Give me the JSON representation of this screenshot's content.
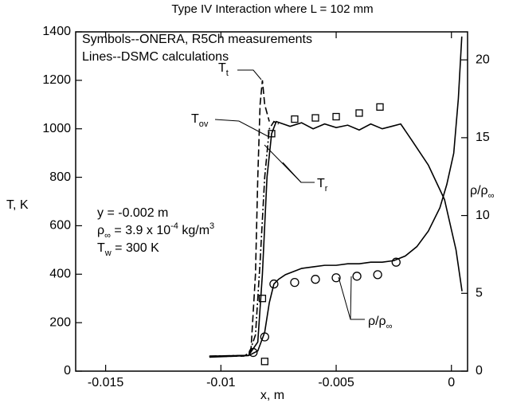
{
  "chart_data": {
    "type": "line",
    "title": "Type IV Interaction where L = 102 mm",
    "xlabel": "x, m",
    "ylabel": "T, K",
    "y2label": [
      {
        "text": "ρ/ρ"
      },
      {
        "text": "∞",
        "shift": "sub"
      }
    ],
    "xlim": [
      -0.0163,
      0.0007
    ],
    "ylim": [
      0,
      1400
    ],
    "y2lim": [
      0,
      21.8
    ],
    "xticks": [
      -0.015,
      -0.01,
      -0.005,
      0
    ],
    "yticks": [
      0,
      200,
      400,
      600,
      800,
      1000,
      1200,
      1400
    ],
    "y2ticks": [
      0,
      5,
      10,
      15,
      20
    ],
    "grid": false,
    "series": [
      {
        "style": "dashed",
        "color": "#000000",
        "x": [
          -0.0105,
          -0.009,
          -0.0087,
          -0.0085,
          -0.0084,
          -0.0083,
          -0.0082,
          -0.0081,
          -0.0079
        ],
        "values": [
          60,
          62,
          80,
          400,
          800,
          1100,
          1200,
          1100,
          1030
        ]
      },
      {
        "style": "dashdot",
        "color": "#000000",
        "x": [
          -0.0105,
          -0.0088,
          -0.0085,
          -0.0083,
          -0.0081,
          -0.0079,
          -0.0077,
          -0.0075
        ],
        "values": [
          62,
          65,
          150,
          450,
          800,
          1000,
          1030,
          1020
        ]
      },
      {
        "style": "solid",
        "color": "#000000",
        "x": [
          -0.0105,
          -0.0088,
          -0.0084,
          -0.0082,
          -0.008,
          -0.0078,
          -0.0076,
          -0.0073,
          -0.007,
          -0.0065,
          -0.006,
          -0.0055,
          -0.005,
          -0.0045,
          -0.004,
          -0.0035,
          -0.003,
          -0.0026,
          -0.0022,
          -0.0017,
          -0.001,
          -0.0003,
          0.0002,
          0.00046
        ],
        "values": [
          62,
          65,
          120,
          400,
          800,
          980,
          1030,
          1020,
          1010,
          1025,
          1000,
          1020,
          1005,
          1015,
          995,
          1020,
          1000,
          1010,
          1020,
          950,
          850,
          708,
          500,
          330
        ]
      },
      {
        "style": "solid",
        "color": "#000000",
        "axis": "y2",
        "x": [
          -0.0105,
          -0.0088,
          -0.0084,
          -0.0081,
          -0.0079,
          -0.0077,
          -0.0075,
          -0.0072,
          -0.0065,
          -0.006,
          -0.0055,
          -0.005,
          -0.0045,
          -0.004,
          -0.0035,
          -0.003,
          -0.0025,
          -0.002,
          -0.0015,
          -0.001,
          -0.0005,
          -0.0002,
          0.0001,
          0.0003,
          0.00045
        ],
        "values": [
          0.9,
          1.0,
          1.3,
          2.5,
          4.4,
          5.6,
          5.9,
          6.2,
          6.6,
          6.7,
          6.8,
          6.8,
          6.9,
          6.9,
          7.0,
          7.0,
          7.1,
          7.4,
          8.0,
          9.0,
          10.5,
          12,
          14,
          17.5,
          21.5
        ]
      },
      {
        "style": "markers",
        "marker": "square",
        "color": "#000000",
        "x": [
          -0.0082,
          -0.0081,
          -0.0078,
          -0.0068,
          -0.0059,
          -0.005,
          -0.004,
          -0.0031
        ],
        "values": [
          300,
          40,
          980,
          1040,
          1045,
          1050,
          1065,
          1090
        ]
      },
      {
        "style": "markers",
        "marker": "circle",
        "color": "#000000",
        "axis": "y2",
        "x": [
          -0.0086,
          -0.0081,
          -0.0077,
          -0.0068,
          -0.0059,
          -0.005,
          -0.0041,
          -0.0032,
          -0.0024
        ],
        "values": [
          1.2,
          2.2,
          5.6,
          5.7,
          5.9,
          6.0,
          6.1,
          6.2,
          7.0
        ]
      }
    ],
    "annotations": [
      {
        "segments": [
          {
            "text": "Symbols--ONERA, R5Ch measurements"
          }
        ]
      },
      {
        "segments": [
          {
            "text": "Lines--DSMC calculations"
          }
        ]
      },
      {
        "segments": [
          {
            "text": "T"
          },
          {
            "text": "t",
            "shift": "sub"
          }
        ]
      },
      {
        "segments": [
          {
            "text": "T"
          },
          {
            "text": "ov",
            "shift": "sub"
          }
        ]
      },
      {
        "segments": [
          {
            "text": "T"
          },
          {
            "text": "r",
            "shift": "sub"
          }
        ]
      },
      {
        "segments": [
          {
            "text": "y = -0.002 m"
          }
        ]
      },
      {
        "segments": [
          {
            "text": "ρ"
          },
          {
            "text": "∞",
            "shift": "sub"
          },
          {
            "text": " = 3.9 x 10"
          },
          {
            "text": "-4",
            "shift": "super"
          },
          {
            "text": " kg/m"
          },
          {
            "text": "3",
            "shift": "super"
          }
        ]
      },
      {
        "segments": [
          {
            "text": "T"
          },
          {
            "text": "w",
            "shift": "sub"
          },
          {
            "text": " = 300 K"
          }
        ]
      },
      {
        "segments": [
          {
            "text": "ρ/ρ"
          },
          {
            "text": "∞",
            "shift": "sub"
          }
        ]
      }
    ]
  }
}
